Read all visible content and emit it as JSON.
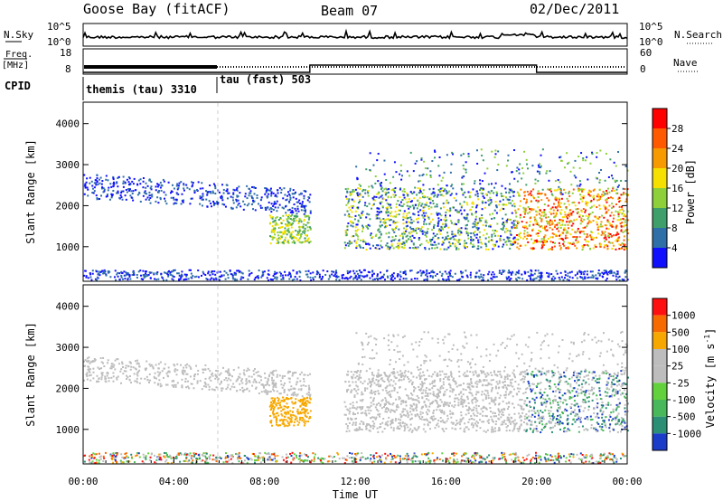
{
  "header": {
    "station": "Goose Bay (fitACF)",
    "beam": "Beam 07",
    "date": "02/Dec/2011"
  },
  "chart_data": [
    {
      "type": "line",
      "panel": "noise",
      "left_label": "N.Sky",
      "right_label": "N.Search",
      "left_ticks": [
        "10^5",
        "10^0"
      ],
      "right_ticks": [
        "10^5",
        "10^0"
      ]
    },
    {
      "type": "line",
      "panel": "frequency-nave",
      "left_label_line1": "Freq.",
      "left_label_line2": "[MHz]",
      "left_ticks": [
        "18",
        "8"
      ],
      "right_label": "Nave",
      "right_ticks": [
        "60",
        "0"
      ],
      "nave_segments": [
        {
          "from_h": 0,
          "to_h": 10,
          "nave": 0
        },
        {
          "from_h": 10,
          "to_h": 20,
          "nave": 20
        },
        {
          "from_h": 20,
          "to_h": 24,
          "nave": 0
        }
      ]
    },
    {
      "type": "table",
      "panel": "cpid",
      "label": "CPID",
      "segments": [
        {
          "from_h": 0,
          "to_h": 6,
          "text": "themis (tau) 3310"
        },
        {
          "from_h": 6,
          "to_h": 24,
          "text": "tau (fast) 503"
        }
      ]
    },
    {
      "type": "heatmap",
      "panel": "power",
      "ylabel": "Slant Range [km]",
      "ylim": [
        180,
        4500
      ],
      "yticks": [
        "1000",
        "2000",
        "3000",
        "4000"
      ],
      "colorbar_label": "Power [dB]",
      "colorbar_ticks": [
        "4",
        "8",
        "12",
        "16",
        "20",
        "24",
        "28"
      ],
      "colorbar_colors": [
        "#1010ff",
        "#2e6fa8",
        "#3f9f6a",
        "#8ed03a",
        "#f5e000",
        "#f79a00",
        "#ff5a00",
        "#ff0000"
      ]
    },
    {
      "type": "heatmap",
      "panel": "velocity",
      "ylabel": "Slant Range [km]",
      "ylim": [
        180,
        4500
      ],
      "yticks": [
        "1000",
        "2000",
        "3000",
        "4000"
      ],
      "colorbar_label": "Velocity [m s",
      "colorbar_label_sup": "-1",
      "colorbar_label_close": "]",
      "colorbar_ticks": [
        "1000",
        "500",
        "100",
        "25",
        "-25",
        "-100",
        "-500",
        "-1000"
      ],
      "colorbar_colors": [
        "#1a3cc8",
        "#2b8f76",
        "#49b85a",
        "#62d13c",
        "#bdbdbd",
        "#bdbdbd",
        "#f7a800",
        "#f76a00",
        "#ff1010"
      ]
    }
  ],
  "x_axis": {
    "label": "Time UT",
    "ticks": [
      "00:00",
      "04:00",
      "08:00",
      "12:00",
      "16:00",
      "20:00",
      "00:00"
    ],
    "range_hours": [
      0,
      24
    ]
  }
}
